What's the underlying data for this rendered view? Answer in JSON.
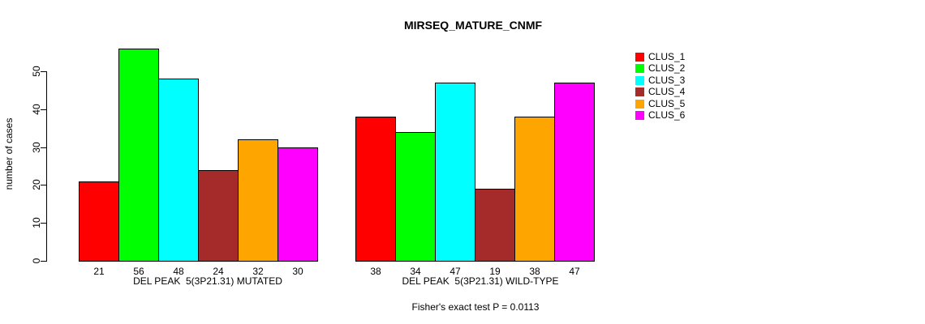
{
  "chart_data": {
    "type": "bar",
    "title": "MIRSEQ_MATURE_CNMF",
    "ylabel": "number of cases",
    "xlabel": "",
    "ylim": [
      0,
      56
    ],
    "yticks": [
      0,
      10,
      20,
      30,
      40,
      50
    ],
    "grid": false,
    "legend_position": "right",
    "series": [
      "CLUS_1",
      "CLUS_2",
      "CLUS_3",
      "CLUS_4",
      "CLUS_5",
      "CLUS_6"
    ],
    "series_colors": [
      "#ff0000",
      "#00ff00",
      "#00ffff",
      "#a52a2a",
      "#ffa500",
      "#ff00ff"
    ],
    "bar_border_color": "#000000",
    "value_labels_shown": true,
    "groups": [
      {
        "label": "DEL PEAK  5(3P21.31) MUTATED",
        "values": [
          21,
          56,
          48,
          24,
          32,
          30
        ]
      },
      {
        "label": "DEL PEAK  5(3P21.31) WILD-TYPE",
        "values": [
          38,
          34,
          47,
          19,
          38,
          47
        ]
      }
    ],
    "annotation": "Fisher's exact test P = 0.0113"
  }
}
